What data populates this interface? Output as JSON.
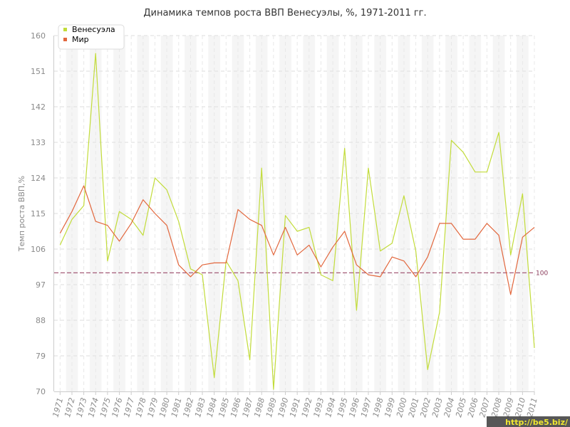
{
  "chart_data": {
    "type": "line",
    "title": "Динамика темпов роста ВВП Венесуэлы, %, 1971-2011 гг.",
    "xlabel": "",
    "ylabel": "Темп роста ВВП,%",
    "ylim": [
      70,
      160
    ],
    "yticks": [
      70,
      79,
      88,
      97,
      106,
      115,
      124,
      133,
      142,
      151,
      160
    ],
    "x": [
      "1971",
      "1972",
      "1973",
      "1974",
      "1975",
      "1976",
      "1977",
      "1978",
      "1979",
      "1980",
      "1981",
      "1982",
      "1983",
      "1984",
      "1985",
      "1986",
      "1987",
      "1988",
      "1989",
      "1990",
      "1991",
      "1992",
      "1993",
      "1994",
      "1995",
      "1996",
      "1997",
      "1998",
      "1999",
      "2000",
      "2001",
      "2002",
      "2003",
      "2004",
      "2005",
      "2006",
      "2007",
      "2008",
      "2009",
      "2010",
      "2011"
    ],
    "series": [
      {
        "name": "Венесуэла",
        "color": "#c2dc3a",
        "values": [
          107,
          113.5,
          117,
          155.5,
          103,
          115.5,
          113.5,
          109.5,
          124,
          121,
          113,
          101,
          99.5,
          73.5,
          103,
          98,
          78,
          126.5,
          70.5,
          114.5,
          110.5,
          111.5,
          99.5,
          98,
          131.5,
          90.5,
          126.5,
          105.5,
          107.5,
          119.5,
          105.5,
          75.5,
          90,
          133.5,
          130.5,
          125.5,
          125.5,
          135.5,
          104.5,
          120,
          81
        ]
      },
      {
        "name": "Мир",
        "color": "#e2673d",
        "values": [
          110,
          115.5,
          122,
          113,
          112,
          108,
          112.5,
          118.5,
          115,
          112,
          102,
          99,
          102,
          102.5,
          102.5,
          116,
          113.5,
          112,
          104.5,
          111.5,
          104.5,
          107,
          101.5,
          106.5,
          110.5,
          102,
          99.5,
          99,
          104,
          103,
          99,
          104,
          112.5,
          112.5,
          108.5,
          108.5,
          112.5,
          109.5,
          94.5,
          109,
          111.5
        ]
      }
    ],
    "reference_line": {
      "value": 100,
      "label": "100",
      "color": "#9b4a6a"
    },
    "grid": true,
    "legend_position": "top-left"
  },
  "watermark": "http://be5.biz/"
}
